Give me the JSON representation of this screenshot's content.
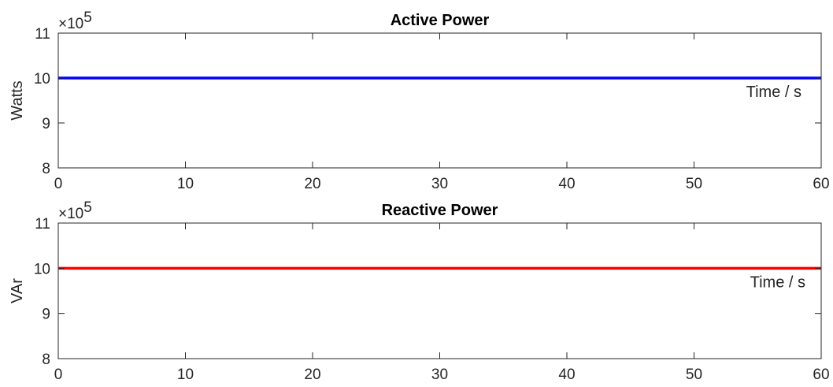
{
  "chart_data": [
    {
      "type": "line",
      "title": "Active Power",
      "xlabel": "",
      "ylabel": "Watts",
      "annotation": "Time / s",
      "y_multiplier": "×10",
      "y_exponent": "5",
      "xlim": [
        0,
        60
      ],
      "ylim": [
        8,
        11
      ],
      "xticks": [
        "0",
        "10",
        "20",
        "30",
        "40",
        "50",
        "60"
      ],
      "yticks": [
        "8",
        "9",
        "10",
        "11"
      ],
      "grid": false,
      "series": [
        {
          "color": "#0000ff",
          "x": [
            0,
            60
          ],
          "y": [
            10,
            10
          ]
        }
      ]
    },
    {
      "type": "line",
      "title": "Reactive Power",
      "xlabel": "",
      "ylabel": "VAr",
      "annotation": "Time / s",
      "y_multiplier": "×10",
      "y_exponent": "5",
      "xlim": [
        0,
        60
      ],
      "ylim": [
        8,
        11
      ],
      "xticks": [
        "0",
        "10",
        "20",
        "30",
        "40",
        "50",
        "60"
      ],
      "yticks": [
        "8",
        "9",
        "10",
        "11"
      ],
      "grid": false,
      "series": [
        {
          "color": "#ff0000",
          "x": [
            0,
            60
          ],
          "y": [
            10,
            10
          ]
        }
      ]
    }
  ]
}
